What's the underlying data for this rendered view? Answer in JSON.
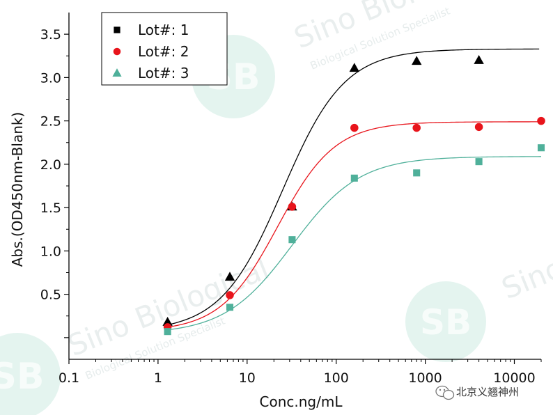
{
  "chart_data": {
    "type": "scatter",
    "xlabel": "Conc.ng/mL",
    "ylabel": "Abs.(OD450nm-Blank)",
    "xscale": "log",
    "xlim": [
      0.1,
      20000
    ],
    "ylim": [
      -0.25,
      3.75
    ],
    "xticks": [
      0.1,
      1,
      10,
      100,
      1000,
      10000
    ],
    "xtick_labels": [
      "0.1",
      "1",
      "10",
      "100",
      "1000",
      "10000"
    ],
    "yticks": [
      0.5,
      1.0,
      1.5,
      2.0,
      2.5,
      3.0,
      3.5
    ],
    "ytick_labels": [
      "0.5",
      "1.0",
      "1.5",
      "2.0",
      "2.5",
      "3.0",
      "3.5"
    ],
    "legend_position": "top-left",
    "series": [
      {
        "name": "Lot#: 1",
        "legend_marker": "square",
        "marker": "triangle",
        "color": "#000000",
        "x": [
          1.28,
          6.4,
          32,
          160,
          800,
          4000
        ],
        "y": [
          0.18,
          0.7,
          1.51,
          3.11,
          3.19,
          3.2
        ],
        "fit": {
          "bottom": 0.07,
          "top": 3.33,
          "ec50": 25,
          "hill": 1.25
        }
      },
      {
        "name": "Lot#: 2",
        "legend_marker": "circle",
        "marker": "circle",
        "color": "#e8141b",
        "x": [
          1.28,
          6.4,
          32,
          160,
          800,
          4000,
          20000
        ],
        "y": [
          0.12,
          0.49,
          1.51,
          2.42,
          2.42,
          2.43,
          2.5
        ],
        "fit": {
          "bottom": 0.07,
          "top": 2.49,
          "ec50": 22,
          "hill": 1.35
        }
      },
      {
        "name": "Lot#: 3",
        "legend_marker": "triangle",
        "marker": "square",
        "color": "#4fb09a",
        "x": [
          1.28,
          6.4,
          32,
          160,
          800,
          4000,
          20000
        ],
        "y": [
          0.07,
          0.35,
          1.13,
          1.84,
          1.9,
          2.03,
          2.19
        ],
        "fit": {
          "bottom": 0.04,
          "top": 2.09,
          "ec50": 32,
          "hill": 1.15
        }
      }
    ]
  },
  "watermarks": {
    "brand": "Sino Biological",
    "tagline_1": "Biological Solution Specialist",
    "tagline_2": "Biological Solution Specialist",
    "logo": "SB"
  },
  "wechat": {
    "icon": "wechat-icon",
    "label": "北京义翘神州"
  }
}
